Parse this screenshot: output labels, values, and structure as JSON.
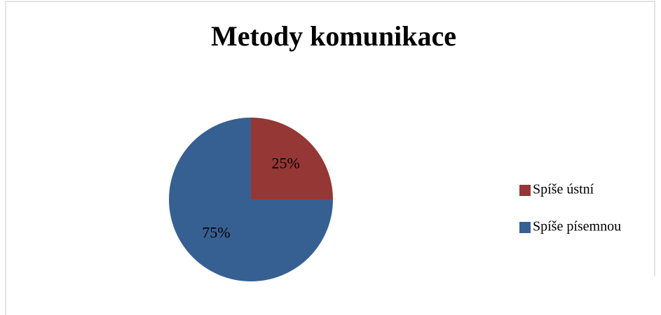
{
  "chart_data": {
    "type": "pie",
    "title": "Metody komunikace",
    "categories": [
      "Spíše ústní",
      "Spíše písemnou"
    ],
    "values": [
      25,
      75
    ],
    "value_labels": [
      "25%",
      "75%"
    ],
    "colors": [
      "#953735",
      "#376092"
    ],
    "legend": "right"
  }
}
